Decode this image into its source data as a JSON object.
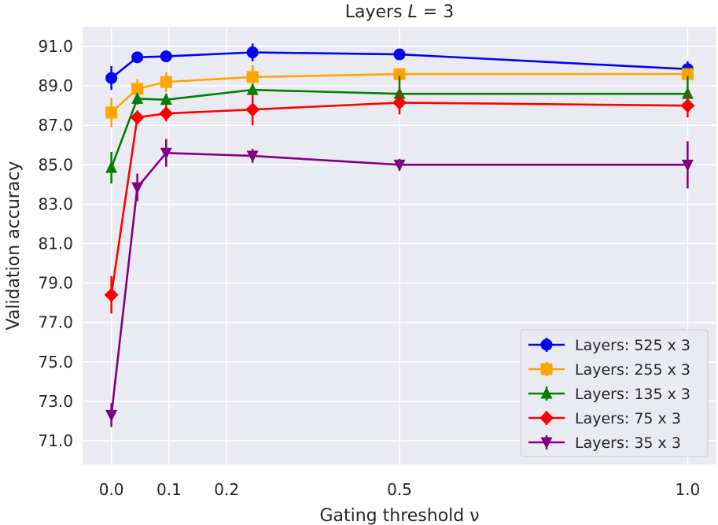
{
  "chart_data": {
    "type": "line",
    "title_prefix": "Layers ",
    "title_var": "L",
    "title_suffix": " = 3",
    "xlabel": "Gating threshold ν",
    "ylabel": "Validation accuracy",
    "xlim": [
      -0.05,
      1.05
    ],
    "ylim": [
      69.8,
      92.0
    ],
    "xticks": [
      0.0,
      0.1,
      0.2,
      0.5,
      1.0
    ],
    "xtick_labels": [
      "0.0",
      "0.1",
      "0.2",
      "0.5",
      "1.0"
    ],
    "yticks": [
      71.0,
      73.0,
      75.0,
      77.0,
      79.0,
      81.0,
      83.0,
      85.0,
      87.0,
      89.0,
      91.0
    ],
    "ytick_labels": [
      "71.0",
      "73.0",
      "75.0",
      "77.0",
      "79.0",
      "81.0",
      "83.0",
      "85.0",
      "87.0",
      "89.0",
      "91.0"
    ],
    "x": [
      0.0,
      0.045,
      0.095,
      0.245,
      0.5,
      1.0
    ],
    "legend_position": "lower-right",
    "series": [
      {
        "name": "Layers: 525 x 3",
        "color": "#0000ff",
        "marker": "circle",
        "values": [
          89.4,
          90.45,
          90.5,
          90.7,
          90.6,
          89.85
        ],
        "errors": [
          0.6,
          0.25,
          0.3,
          0.45,
          0.2,
          0.4
        ]
      },
      {
        "name": "Layers: 255 x 3",
        "color": "#ffa500",
        "marker": "square",
        "values": [
          87.65,
          88.85,
          89.2,
          89.45,
          89.6,
          89.6
        ],
        "errors": [
          0.75,
          0.5,
          0.5,
          0.6,
          0.3,
          0.3
        ]
      },
      {
        "name": "Layers: 135 x 3",
        "color": "#008000",
        "marker": "triangle-up",
        "values": [
          84.85,
          88.35,
          88.3,
          88.8,
          88.6,
          88.6
        ],
        "errors": [
          0.8,
          0.3,
          0.3,
          0.3,
          0.9,
          0.9
        ]
      },
      {
        "name": "Layers: 75 x 3",
        "color": "#ff0000",
        "marker": "diamond",
        "values": [
          78.4,
          87.4,
          87.6,
          87.8,
          88.15,
          88.0
        ],
        "errors": [
          0.95,
          0.35,
          0.4,
          0.8,
          0.6,
          0.6
        ]
      },
      {
        "name": "Layers: 35 x 3",
        "color": "#800080",
        "marker": "triangle-down",
        "values": [
          72.3,
          83.85,
          85.6,
          85.45,
          85.0,
          85.0
        ],
        "errors": [
          0.6,
          0.7,
          0.7,
          0.35,
          0.3,
          1.2
        ]
      }
    ]
  }
}
